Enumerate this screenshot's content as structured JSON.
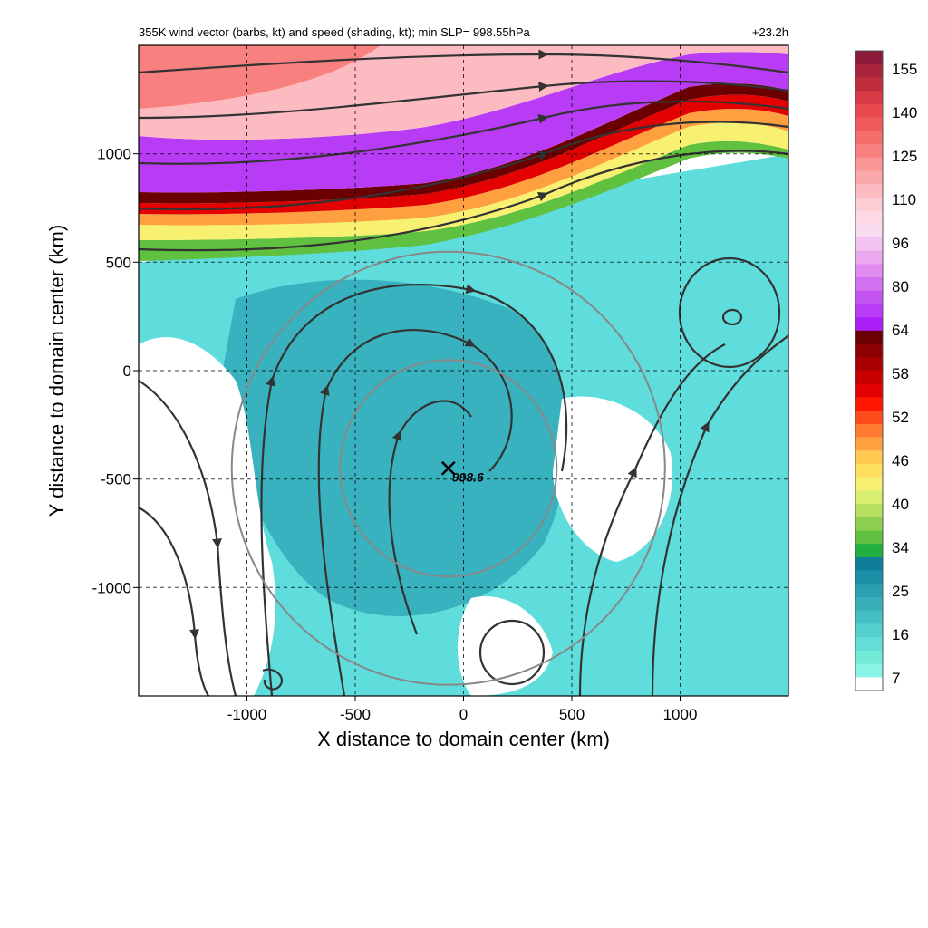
{
  "chart_data": {
    "type": "heatmap",
    "title": "355K wind vector (barbs, kt) and speed (shading, kt); min SLP= 998.55hPa",
    "time_label": "+23.2h",
    "xlabel": "X distance to domain center (km)",
    "ylabel": "Y distance to domain center (km)",
    "xlim": [
      -1500,
      1500
    ],
    "ylim": [
      -1500,
      1500
    ],
    "xticks": [
      -1000,
      -500,
      0,
      500,
      1000
    ],
    "yticks": [
      1000,
      500,
      0,
      -500,
      -1000
    ],
    "grid": "dashed",
    "min_slp_label": "998.6",
    "min_slp_center_km": [
      -70,
      -450
    ],
    "rings": [
      {
        "center_km": [
          -70,
          -450
        ],
        "radius_km": 500
      },
      {
        "center_km": [
          -70,
          -450
        ],
        "radius_km": 1000
      }
    ],
    "colorbar": {
      "ticks": [
        155,
        140,
        125,
        110,
        96,
        80,
        64,
        58,
        52,
        46,
        40,
        34,
        25,
        16,
        7
      ],
      "colors": [
        "#8b1a3a",
        "#a8243c",
        "#c02e3e",
        "#d73a44",
        "#e84a50",
        "#f05a5a",
        "#f56e6c",
        "#f8807e",
        "#fa9595",
        "#fba8aa",
        "#fcbbc0",
        "#fdcdd5",
        "#fed8e4",
        "#fadcf0",
        "#f3c2f0",
        "#eaa8ef",
        "#e08cf0",
        "#d270f2",
        "#c455f3",
        "#b83cf5",
        "#ab1ff8",
        "#6b0000",
        "#8b0000",
        "#a80000",
        "#c80000",
        "#e30000",
        "#ff1500",
        "#ff4a1a",
        "#ff7a30",
        "#ffa040",
        "#ffc850",
        "#ffe060",
        "#f8f070",
        "#d8ee70",
        "#b8e060",
        "#90d050",
        "#60c040",
        "#20b040",
        "#0e7e98",
        "#1a8fa5",
        "#2aa0b0",
        "#38b0ba",
        "#44c0c4",
        "#52cfce",
        "#62ddd8",
        "#72ead8",
        "#88f5e6",
        "#ffffff"
      ]
    }
  }
}
